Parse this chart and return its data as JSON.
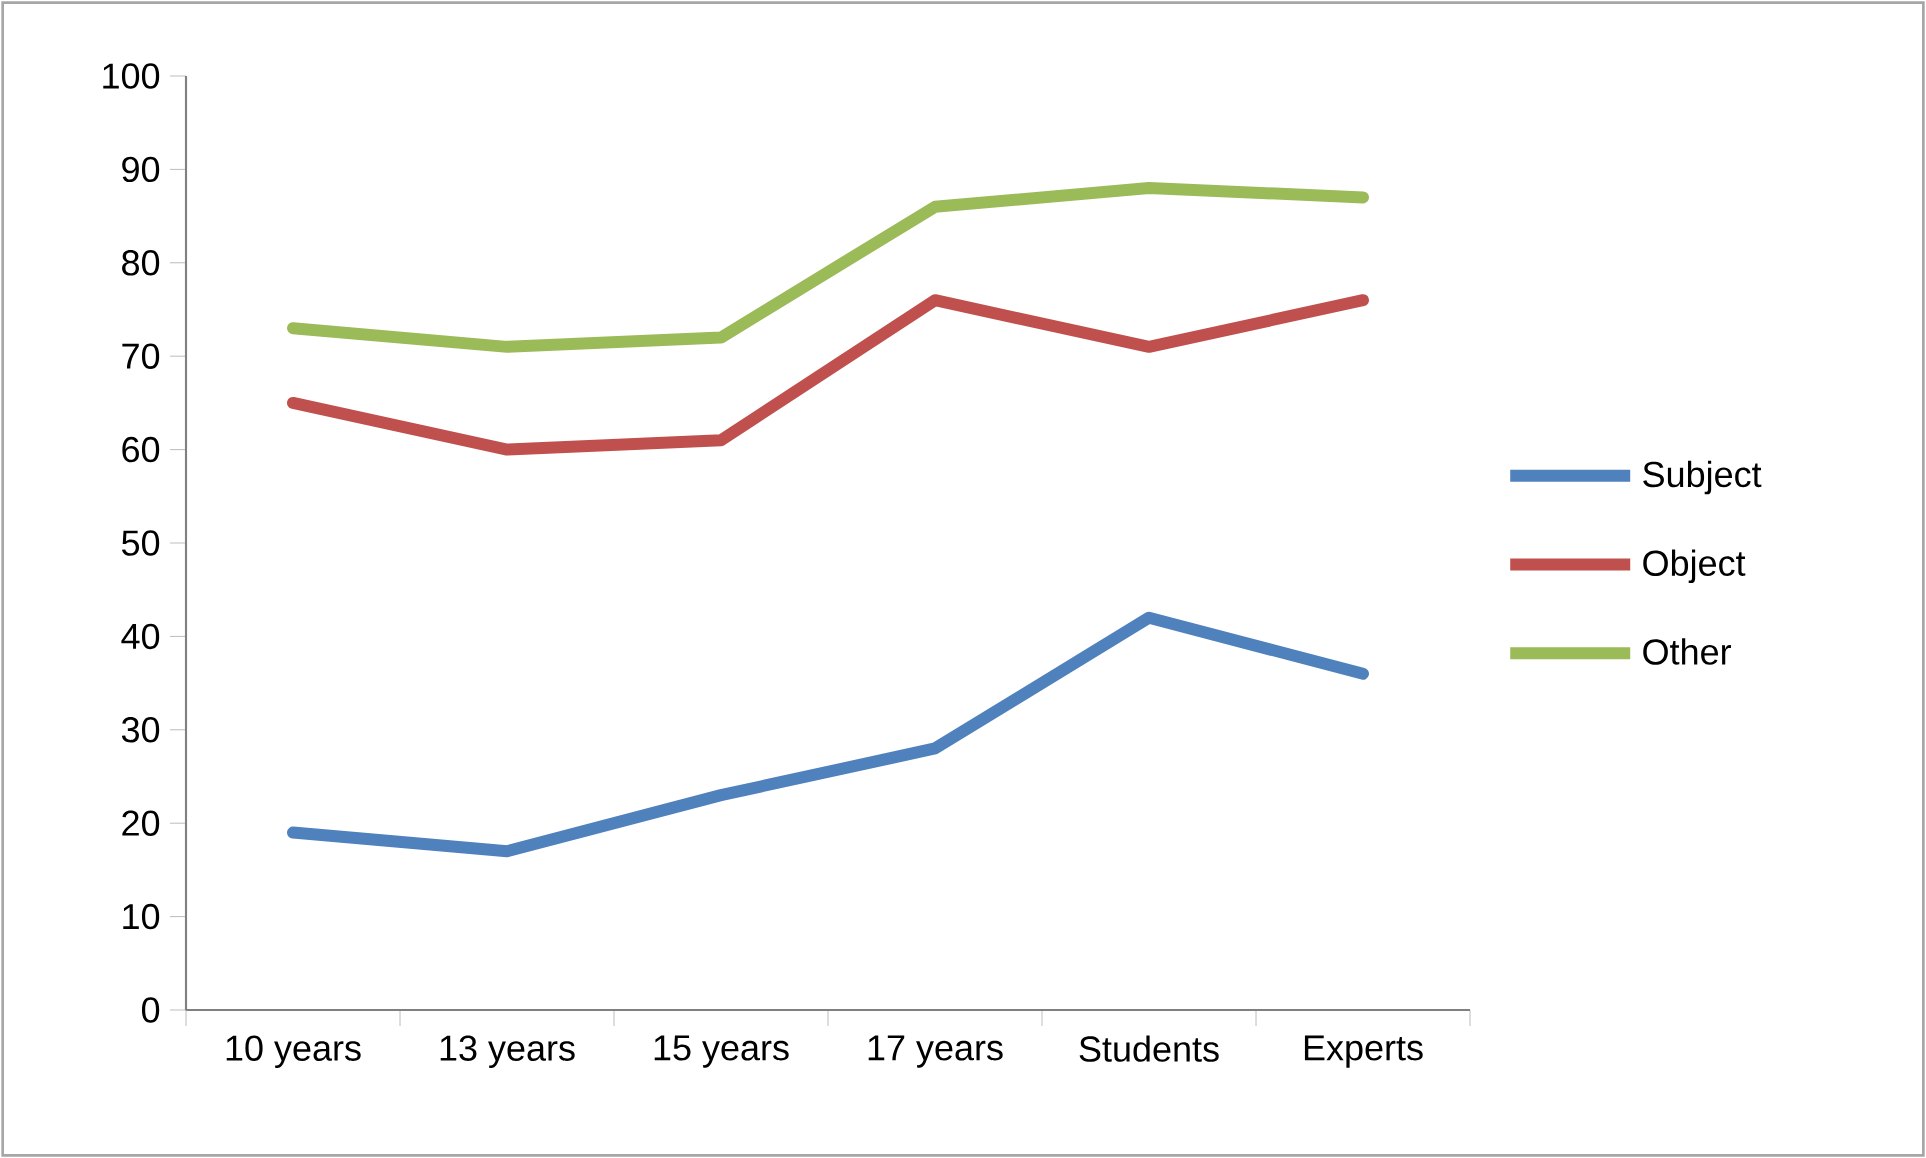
{
  "chart_data": {
    "type": "line",
    "categories": [
      "10 years",
      "13 years",
      "15 years",
      "17 years",
      "Students",
      "Experts"
    ],
    "series": [
      {
        "name": "Subject",
        "color": "#4f81bd",
        "values": [
          19,
          17,
          23,
          28,
          42,
          36
        ]
      },
      {
        "name": "Object",
        "color": "#c0504d",
        "values": [
          65,
          60,
          61,
          76,
          71,
          76
        ]
      },
      {
        "name": "Other",
        "color": "#9bbb59",
        "values": [
          73,
          71,
          72,
          86,
          88,
          87
        ]
      }
    ],
    "ylim": [
      0,
      100
    ],
    "yticks": [
      0,
      10,
      20,
      30,
      40,
      50,
      60,
      70,
      80,
      90,
      100
    ],
    "legend": "right",
    "marker": "none",
    "line_style": "solid"
  }
}
